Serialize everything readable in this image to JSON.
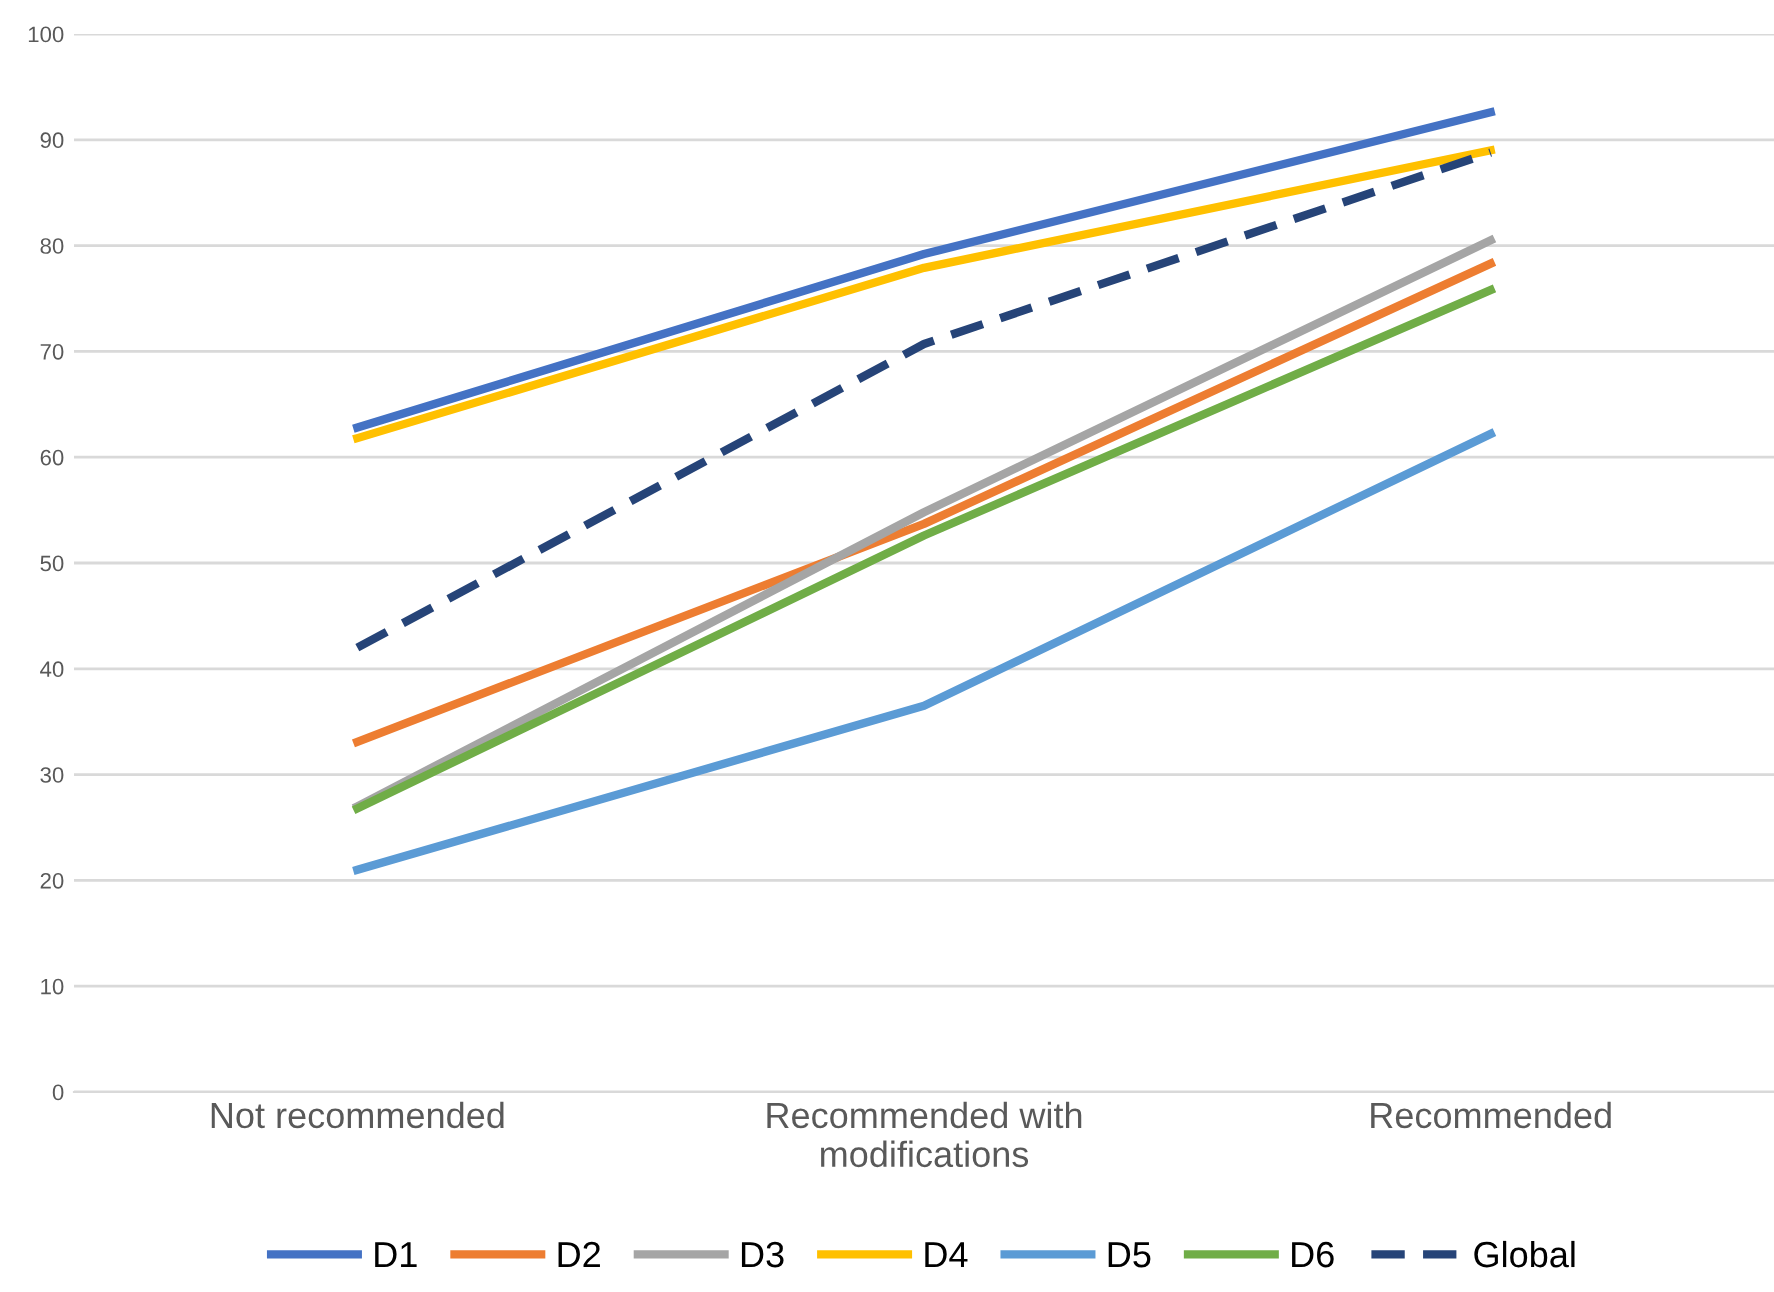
{
  "chart_data": {
    "type": "line",
    "categories": [
      "Not recommended",
      "Recommended with\nmodifications",
      "Recommended"
    ],
    "series": [
      {
        "name": "D1",
        "color": "#4472c4",
        "values": [
          62.8,
          79.2,
          92.6
        ]
      },
      {
        "name": "D2",
        "color": "#ed7d31",
        "values": [
          33.1,
          53.7,
          78.3
        ]
      },
      {
        "name": "D3",
        "color": "#a5a5a5",
        "values": [
          27.0,
          54.8,
          80.5
        ]
      },
      {
        "name": "D4",
        "color": "#ffc000",
        "values": [
          61.8,
          77.9,
          89.0
        ]
      },
      {
        "name": "D5",
        "color": "#5b9bd5",
        "values": [
          21.0,
          36.5,
          62.2
        ]
      },
      {
        "name": "D6",
        "color": "#70ad47",
        "values": [
          26.8,
          52.6,
          75.8
        ]
      },
      {
        "name": "Global",
        "color": "#264478",
        "values": [
          42.0,
          70.7,
          88.8
        ],
        "line_style": "dashed"
      }
    ],
    "ylim": [
      0,
      100
    ],
    "yticks": [
      0,
      10,
      20,
      30,
      40,
      50,
      60,
      70,
      80,
      90,
      100
    ],
    "grid": "y",
    "legend": "bottom",
    "marker": "none"
  }
}
